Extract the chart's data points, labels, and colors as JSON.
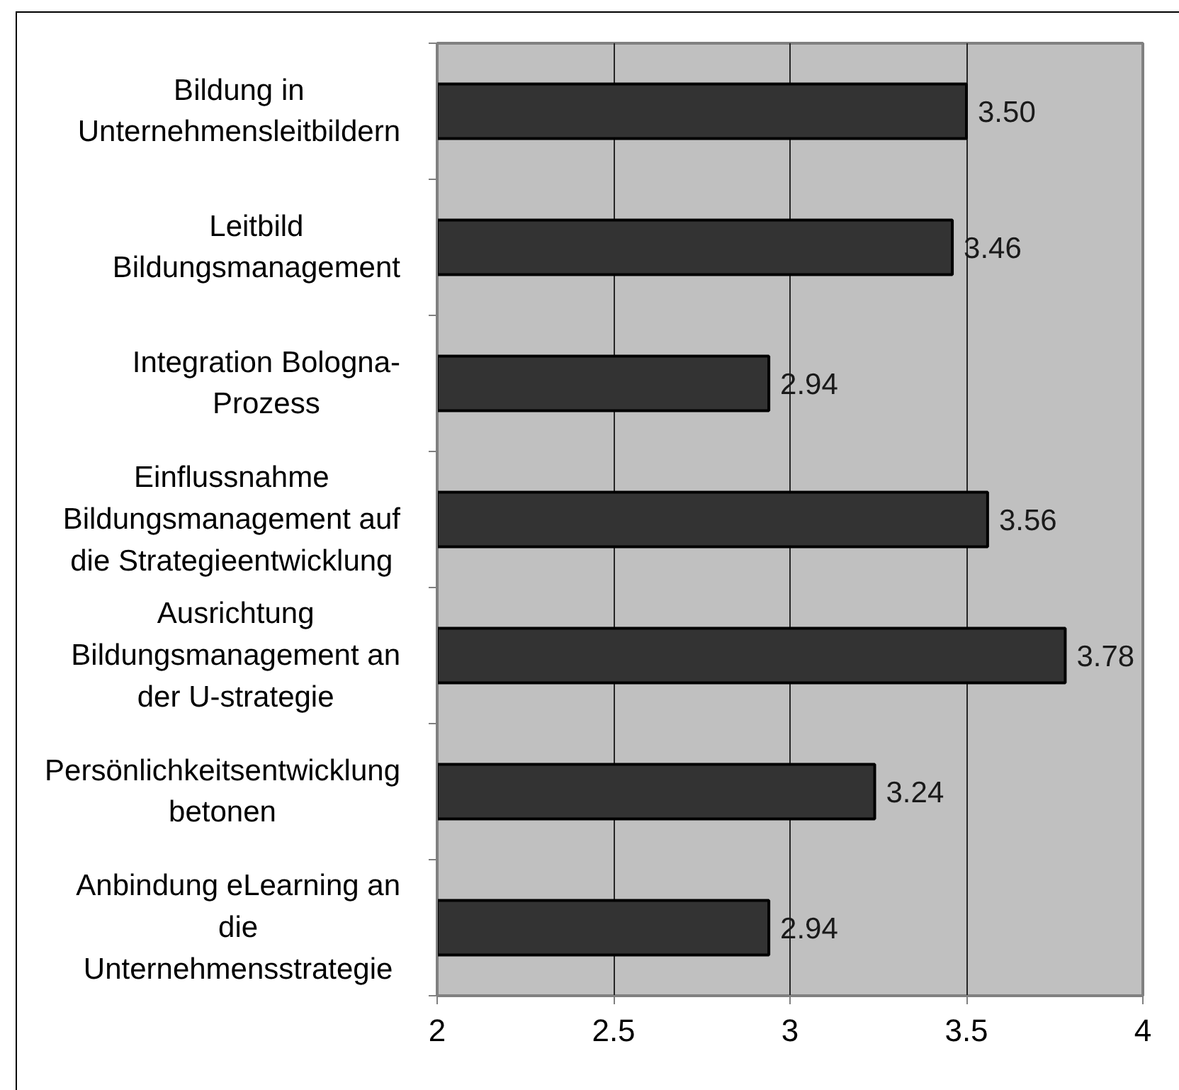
{
  "chart_data": {
    "type": "bar",
    "orientation": "horizontal",
    "categories": [
      "Bildung in\nUnternehmensleitbildern",
      "Leitbild\nBildungsmanagement",
      "Integration Bologna-\nProzess",
      "Einflussnahme\nBildungsmanagement auf\ndie Strategieentwicklung",
      "Ausrichtung\nBildungsmanagement an\nder U-strategie",
      "Persönlichkeitsentwicklung\nbetonen",
      "Anbindung eLearning an\ndie\nUnternehmensstrategie"
    ],
    "values": [
      3.5,
      3.46,
      2.94,
      3.56,
      3.78,
      3.24,
      2.94
    ],
    "value_labels": [
      "3.50",
      "3.46",
      "2.94",
      "3.56",
      "3.78",
      "3.24",
      "2.94"
    ],
    "color": "#333333",
    "xlim": [
      2,
      4
    ],
    "xticks": [
      2,
      2.5,
      3,
      3.5,
      4
    ],
    "grid": "x"
  }
}
